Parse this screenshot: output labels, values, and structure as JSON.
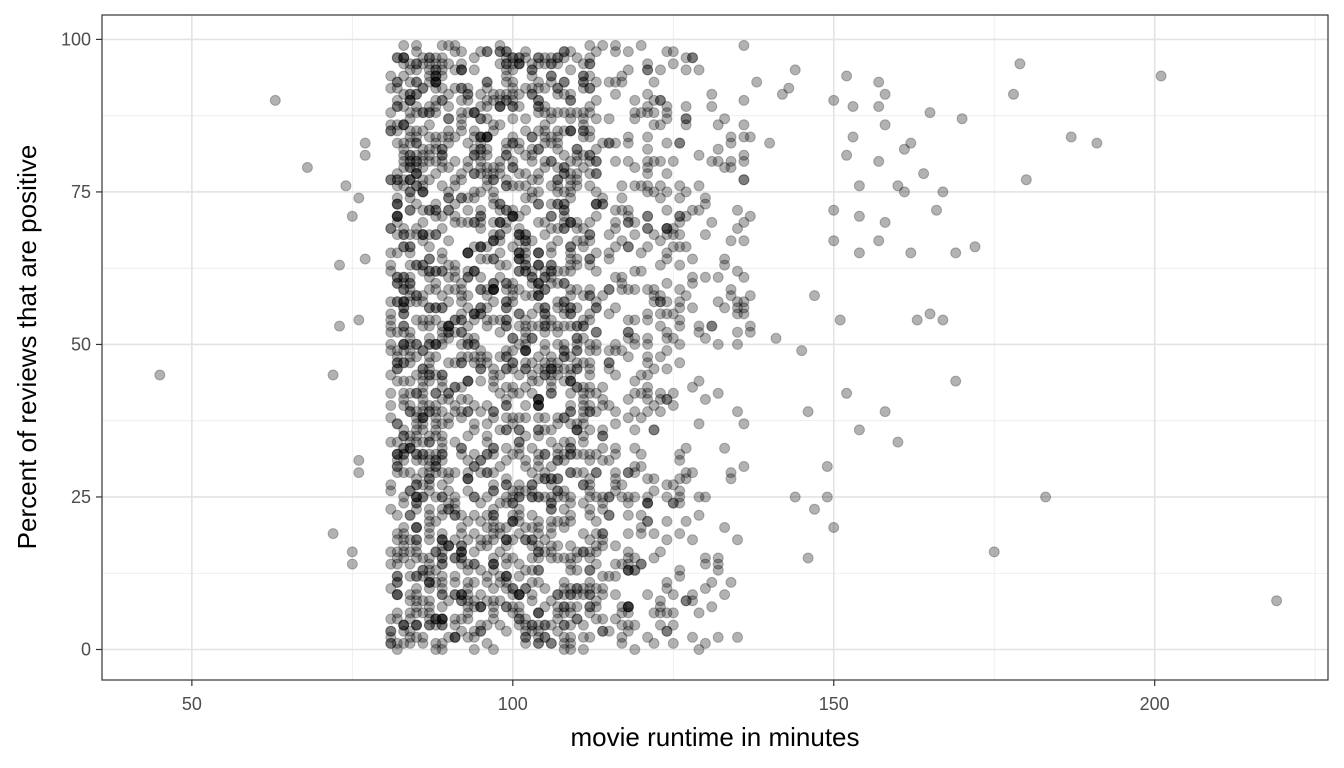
{
  "chart_data": {
    "type": "scatter",
    "title": "",
    "xlabel": "movie runtime in minutes",
    "ylabel": "Percent of reviews that are positive",
    "xlim": [
      36,
      227
    ],
    "ylim": [
      -5,
      104
    ],
    "x_ticks": [
      "50",
      "100",
      "150",
      "200"
    ],
    "y_ticks": [
      "0",
      "25",
      "50",
      "75",
      "100"
    ],
    "x_tick_values": [
      50,
      100,
      150,
      200
    ],
    "y_tick_values": [
      0,
      25,
      50,
      75,
      100
    ],
    "x_minor": [
      75,
      125,
      175,
      225
    ],
    "y_minor": [
      12.5,
      37.5,
      62.5,
      87.5
    ],
    "grid": true,
    "theme": "bw",
    "point_color": "#000000",
    "point_opacity": 0.3,
    "point_count_estimate": 2300,
    "outliers": [
      {
        "x": 45,
        "y": 45
      },
      {
        "x": 63,
        "y": 90
      },
      {
        "x": 68,
        "y": 79
      },
      {
        "x": 72,
        "y": 45
      },
      {
        "x": 72,
        "y": 19
      },
      {
        "x": 73,
        "y": 53
      },
      {
        "x": 73,
        "y": 63
      },
      {
        "x": 74,
        "y": 76
      },
      {
        "x": 75,
        "y": 71
      },
      {
        "x": 75,
        "y": 16
      },
      {
        "x": 75,
        "y": 14
      },
      {
        "x": 76,
        "y": 74
      },
      {
        "x": 76,
        "y": 54
      },
      {
        "x": 76,
        "y": 31
      },
      {
        "x": 76,
        "y": 29
      },
      {
        "x": 77,
        "y": 81
      },
      {
        "x": 77,
        "y": 83
      },
      {
        "x": 77,
        "y": 64
      },
      {
        "x": 138,
        "y": 93
      },
      {
        "x": 140,
        "y": 83
      },
      {
        "x": 141,
        "y": 51
      },
      {
        "x": 142,
        "y": 91
      },
      {
        "x": 143,
        "y": 92
      },
      {
        "x": 144,
        "y": 95
      },
      {
        "x": 144,
        "y": 25
      },
      {
        "x": 145,
        "y": 49
      },
      {
        "x": 146,
        "y": 15
      },
      {
        "x": 146,
        "y": 39
      },
      {
        "x": 147,
        "y": 58
      },
      {
        "x": 147,
        "y": 23
      },
      {
        "x": 149,
        "y": 30
      },
      {
        "x": 149,
        "y": 25
      },
      {
        "x": 150,
        "y": 90
      },
      {
        "x": 150,
        "y": 72
      },
      {
        "x": 150,
        "y": 67
      },
      {
        "x": 150,
        "y": 20
      },
      {
        "x": 151,
        "y": 54
      },
      {
        "x": 152,
        "y": 94
      },
      {
        "x": 152,
        "y": 81
      },
      {
        "x": 152,
        "y": 42
      },
      {
        "x": 153,
        "y": 84
      },
      {
        "x": 153,
        "y": 89
      },
      {
        "x": 154,
        "y": 76
      },
      {
        "x": 154,
        "y": 71
      },
      {
        "x": 154,
        "y": 65
      },
      {
        "x": 154,
        "y": 36
      },
      {
        "x": 157,
        "y": 93
      },
      {
        "x": 157,
        "y": 89
      },
      {
        "x": 157,
        "y": 80
      },
      {
        "x": 157,
        "y": 67
      },
      {
        "x": 158,
        "y": 91
      },
      {
        "x": 158,
        "y": 86
      },
      {
        "x": 158,
        "y": 70
      },
      {
        "x": 158,
        "y": 39
      },
      {
        "x": 160,
        "y": 76
      },
      {
        "x": 160,
        "y": 34
      },
      {
        "x": 161,
        "y": 82
      },
      {
        "x": 161,
        "y": 75
      },
      {
        "x": 162,
        "y": 83
      },
      {
        "x": 162,
        "y": 65
      },
      {
        "x": 163,
        "y": 54
      },
      {
        "x": 164,
        "y": 78
      },
      {
        "x": 165,
        "y": 88
      },
      {
        "x": 165,
        "y": 55
      },
      {
        "x": 166,
        "y": 72
      },
      {
        "x": 167,
        "y": 75
      },
      {
        "x": 167,
        "y": 54
      },
      {
        "x": 169,
        "y": 65
      },
      {
        "x": 169,
        "y": 44
      },
      {
        "x": 170,
        "y": 87
      },
      {
        "x": 172,
        "y": 66
      },
      {
        "x": 175,
        "y": 16
      },
      {
        "x": 178,
        "y": 91
      },
      {
        "x": 179,
        "y": 96
      },
      {
        "x": 180,
        "y": 77
      },
      {
        "x": 183,
        "y": 25
      },
      {
        "x": 187,
        "y": 84
      },
      {
        "x": 191,
        "y": 83
      },
      {
        "x": 201,
        "y": 94
      },
      {
        "x": 219,
        "y": 8
      }
    ]
  }
}
